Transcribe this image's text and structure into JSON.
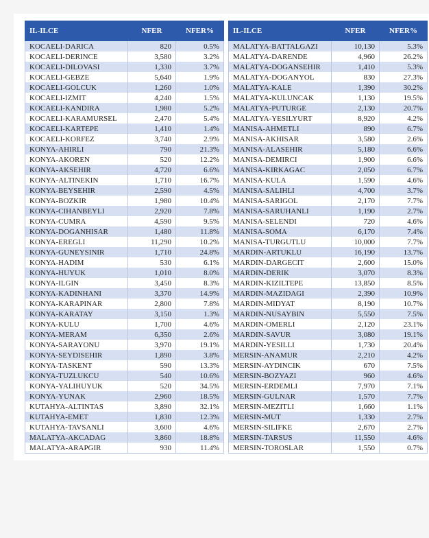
{
  "colors": {
    "header_bg": "#2e5aac",
    "header_fg": "#ffffff",
    "row_odd_bg": "#d6e0f2",
    "row_even_bg": "#ffffff",
    "border": "#b8c6e2"
  },
  "headers": {
    "c1": "IL-ILCE",
    "c2": "NFER",
    "c3": "NFER%"
  },
  "left": [
    [
      "KOCAELI-DARICA",
      "820",
      "0.5%"
    ],
    [
      "KOCAELI-DERINCE",
      "3,580",
      "3.2%"
    ],
    [
      "KOCAELI-DILOVASI",
      "1,330",
      "3.7%"
    ],
    [
      "KOCAELI-GEBZE",
      "5,640",
      "1.9%"
    ],
    [
      "KOCAELI-GOLCUK",
      "1,260",
      "1.0%"
    ],
    [
      "KOCAELI-IZMIT",
      "4,240",
      "1.5%"
    ],
    [
      "KOCAELI-KANDIRA",
      "1,980",
      "5.2%"
    ],
    [
      "KOCAELI-KARAMURSEL",
      "2,470",
      "5.4%"
    ],
    [
      "KOCAELI-KARTEPE",
      "1,410",
      "1.4%"
    ],
    [
      "KOCAELI-KORFEZ",
      "3,740",
      "2.9%"
    ],
    [
      "KONYA-AHIRLI",
      "790",
      "21.3%"
    ],
    [
      "KONYA-AKOREN",
      "520",
      "12.2%"
    ],
    [
      "KONYA-AKSEHIR",
      "4,720",
      "6.6%"
    ],
    [
      "KONYA-ALTINEKIN",
      "1,710",
      "16.7%"
    ],
    [
      "KONYA-BEYSEHIR",
      "2,590",
      "4.5%"
    ],
    [
      "KONYA-BOZKIR",
      "1,980",
      "10.4%"
    ],
    [
      "KONYA-CIHANBEYLI",
      "2,920",
      "7.8%"
    ],
    [
      "KONYA-CUMRA",
      "4,590",
      "9.5%"
    ],
    [
      "KONYA-DOGANHISAR",
      "1,480",
      "11.8%"
    ],
    [
      "KONYA-EREGLI",
      "11,290",
      "10.2%"
    ],
    [
      "KONYA-GUNEYSINIR",
      "1,710",
      "24.8%"
    ],
    [
      "KONYA-HADIM",
      "530",
      "6.1%"
    ],
    [
      "KONYA-HUYUK",
      "1,010",
      "8.0%"
    ],
    [
      "KONYA-ILGIN",
      "3,450",
      "8.3%"
    ],
    [
      "KONYA-KADINHANI",
      "3,370",
      "14.9%"
    ],
    [
      "KONYA-KARAPINAR",
      "2,800",
      "7.8%"
    ],
    [
      "KONYA-KARATAY",
      "3,150",
      "1.3%"
    ],
    [
      "KONYA-KULU",
      "1,700",
      "4.6%"
    ],
    [
      "KONYA-MERAM",
      "6,350",
      "2.6%"
    ],
    [
      "KONYA-SARAYONU",
      "3,970",
      "19.1%"
    ],
    [
      "KONYA-SEYDISEHIR",
      "1,890",
      "3.8%"
    ],
    [
      "KONYA-TASKENT",
      "590",
      "13.3%"
    ],
    [
      "KONYA-TUZLUKCU",
      "540",
      "10.6%"
    ],
    [
      "KONYA-YALIHUYUK",
      "520",
      "34.5%"
    ],
    [
      "KONYA-YUNAK",
      "2,960",
      "18.5%"
    ],
    [
      "KUTAHYA-ALTINTAS",
      "3,890",
      "32.1%"
    ],
    [
      "KUTAHYA-EMET",
      "1,830",
      "12.3%"
    ],
    [
      "KUTAHYA-TAVSANLI",
      "3,600",
      "4.6%"
    ],
    [
      "MALATYA-AKCADAG",
      "3,860",
      "18.8%"
    ],
    [
      "MALATYA-ARAPGIR",
      "930",
      "11.4%"
    ]
  ],
  "right": [
    [
      "MALATYA-BATTALGAZI",
      "10,130",
      "5.3%"
    ],
    [
      "MALATYA-DARENDE",
      "4,960",
      "26.2%"
    ],
    [
      "MALATYA-DOGANSEHIR",
      "1,410",
      "5.3%"
    ],
    [
      "MALATYA-DOGANYOL",
      "830",
      "27.3%"
    ],
    [
      "MALATYA-KALE",
      "1,390",
      "30.2%"
    ],
    [
      "MALATYA-KULUNCAK",
      "1,130",
      "19.5%"
    ],
    [
      "MALATYA-PUTURGE",
      "2,130",
      "20.7%"
    ],
    [
      "MALATYA-YESILYURT",
      "8,920",
      "4.2%"
    ],
    [
      "MANISA-AHMETLI",
      "890",
      "6.7%"
    ],
    [
      "MANISA-AKHISAR",
      "3,580",
      "2.6%"
    ],
    [
      "MANISA-ALASEHIR",
      "5,180",
      "6.6%"
    ],
    [
      "MANISA-DEMIRCI",
      "1,900",
      "6.6%"
    ],
    [
      "MANISA-KIRKAGAC",
      "2,050",
      "6.7%"
    ],
    [
      "MANISA-KULA",
      "1,590",
      "4.6%"
    ],
    [
      "MANISA-SALIHLI",
      "4,700",
      "3.7%"
    ],
    [
      "MANISA-SARIGOL",
      "2,170",
      "7.7%"
    ],
    [
      "MANISA-SARUHANLI",
      "1,190",
      "2.7%"
    ],
    [
      "MANISA-SELENDI",
      "720",
      "4.6%"
    ],
    [
      "MANISA-SOMA",
      "6,170",
      "7.4%"
    ],
    [
      "MANISA-TURGUTLU",
      "10,000",
      "7.7%"
    ],
    [
      "MARDIN-ARTUKLU",
      "16,190",
      "13.7%"
    ],
    [
      "MARDIN-DARGECIT",
      "2,600",
      "15.0%"
    ],
    [
      "MARDIN-DERIK",
      "3,070",
      "8.3%"
    ],
    [
      "MARDIN-KIZILTEPE",
      "13,850",
      "8.5%"
    ],
    [
      "MARDIN-MAZIDAGI",
      "2,390",
      "10.9%"
    ],
    [
      "MARDIN-MIDYAT",
      "8,190",
      "10.7%"
    ],
    [
      "MARDIN-NUSAYBIN",
      "5,550",
      "7.5%"
    ],
    [
      "MARDIN-OMERLI",
      "2,120",
      "23.1%"
    ],
    [
      "MARDIN-SAVUR",
      "3,080",
      "19.1%"
    ],
    [
      "MARDIN-YESILLI",
      "1,730",
      "20.4%"
    ],
    [
      "MERSIN-ANAMUR",
      "2,210",
      "4.2%"
    ],
    [
      "MERSIN-AYDINCIK",
      "670",
      "7.5%"
    ],
    [
      "MERSIN-BOZYAZI",
      "960",
      "4.6%"
    ],
    [
      "MERSIN-ERDEMLI",
      "7,970",
      "7.1%"
    ],
    [
      "MERSIN-GULNAR",
      "1,570",
      "7.7%"
    ],
    [
      "MERSIN-MEZITLI",
      "1,660",
      "1.1%"
    ],
    [
      "MERSIN-MUT",
      "1,330",
      "2.7%"
    ],
    [
      "MERSIN-SILIFKE",
      "2,670",
      "2.7%"
    ],
    [
      "MERSIN-TARSUS",
      "11,550",
      "4.6%"
    ],
    [
      "MERSIN-TOROSLAR",
      "1,550",
      "0.7%"
    ]
  ]
}
